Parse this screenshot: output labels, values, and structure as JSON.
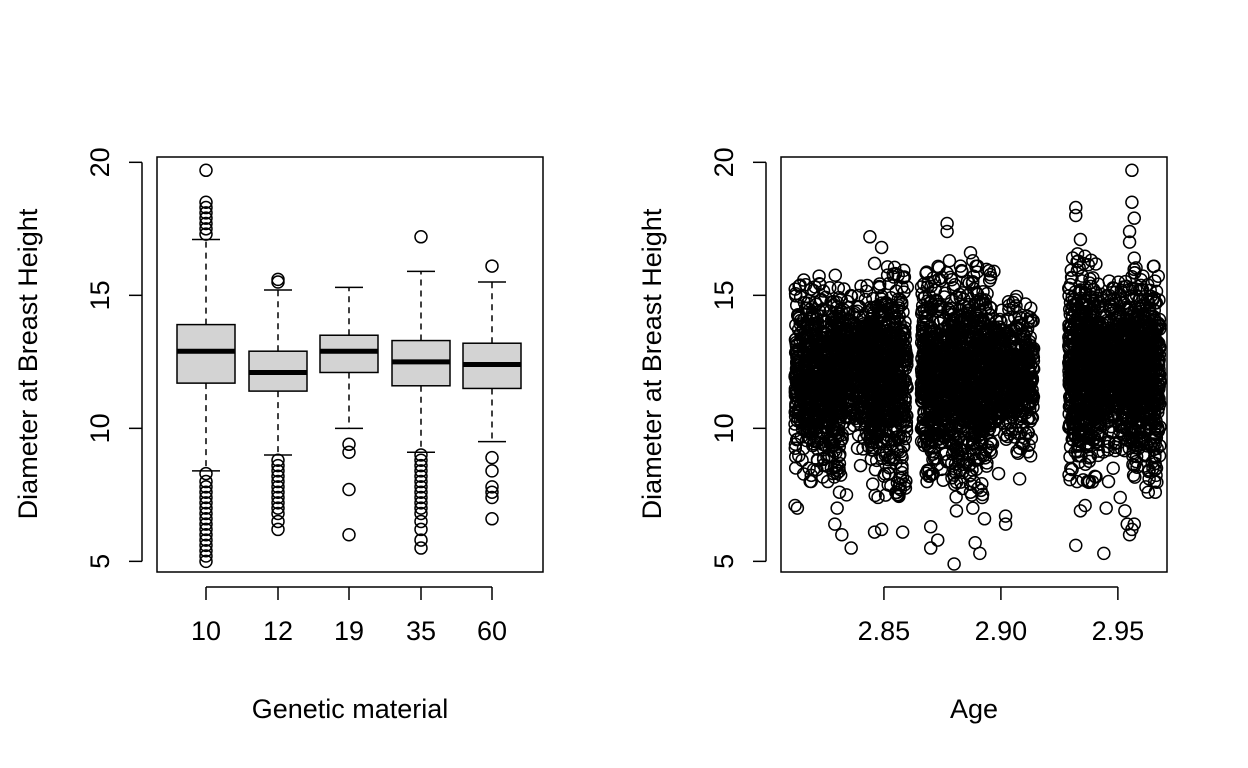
{
  "chart_data": [
    {
      "type": "box",
      "xlabel": "Genetic material",
      "ylabel": "Diameter at Breast Height",
      "categories": [
        "10",
        "12",
        "19",
        "35",
        "60"
      ],
      "ylim": [
        4.6,
        20.2
      ],
      "y_ticks": [
        "5",
        "10",
        "15",
        "20"
      ],
      "boxes": [
        {
          "category": "10",
          "whisker_low": 8.4,
          "q1": 11.7,
          "median": 12.9,
          "q3": 13.9,
          "whisker_high": 17.1,
          "outliers": [
            19.7,
            18.5,
            18.3,
            18.1,
            17.9,
            17.7,
            17.5,
            17.3,
            8.3,
            8.0,
            7.8,
            7.6,
            7.4,
            7.2,
            7.0,
            6.8,
            6.6,
            6.4,
            6.2,
            6.0,
            5.8,
            5.6,
            5.4,
            5.2,
            5.0
          ]
        },
        {
          "category": "12",
          "whisker_low": 9.0,
          "q1": 11.4,
          "median": 12.1,
          "q3": 12.9,
          "whisker_high": 15.2,
          "outliers": [
            15.6,
            15.5,
            8.8,
            8.6,
            8.4,
            8.2,
            8.0,
            7.8,
            7.6,
            7.4,
            7.2,
            7.0,
            6.8,
            6.5,
            6.2
          ]
        },
        {
          "category": "19",
          "whisker_low": 10.0,
          "q1": 12.1,
          "median": 12.9,
          "q3": 13.5,
          "whisker_high": 15.3,
          "outliers": [
            9.4,
            9.1,
            7.7,
            6.0
          ]
        },
        {
          "category": "35",
          "whisker_low": 9.1,
          "q1": 11.6,
          "median": 12.5,
          "q3": 13.3,
          "whisker_high": 15.9,
          "outliers": [
            17.2,
            9.0,
            8.8,
            8.6,
            8.4,
            8.2,
            8.0,
            7.8,
            7.6,
            7.4,
            7.2,
            7.0,
            6.8,
            6.5,
            6.2,
            5.8,
            5.5
          ]
        },
        {
          "category": "60",
          "whisker_low": 9.5,
          "q1": 11.5,
          "median": 12.4,
          "q3": 13.2,
          "whisker_high": 15.5,
          "outliers": [
            16.1,
            8.9,
            8.4,
            7.8,
            7.6,
            7.4,
            6.6
          ]
        }
      ]
    },
    {
      "type": "scatter",
      "xlabel": "Age",
      "ylabel": "Diameter at Breast Height",
      "xlim": [
        2.806,
        2.971
      ],
      "ylim": [
        4.6,
        20.2
      ],
      "x_ticks": [
        "2.85",
        "2.90",
        "2.95"
      ],
      "y_ticks": [
        "5",
        "10",
        "15",
        "20"
      ],
      "clusters": [
        {
          "x_range": [
            2.812,
            2.832
          ],
          "y_range": [
            8.5,
            15.2
          ],
          "n": 700
        },
        {
          "x_range": [
            2.83,
            2.846
          ],
          "y_range": [
            9.5,
            14.8
          ],
          "n": 450
        },
        {
          "x_range": [
            2.844,
            2.86
          ],
          "y_range": [
            8.0,
            15.5
          ],
          "n": 550
        },
        {
          "x_range": [
            2.866,
            2.88
          ],
          "y_range": [
            8.5,
            15.5
          ],
          "n": 550
        },
        {
          "x_range": [
            2.88,
            2.896
          ],
          "y_range": [
            8.0,
            15.5
          ],
          "n": 600
        },
        {
          "x_range": [
            2.896,
            2.914
          ],
          "y_range": [
            9.5,
            14.5
          ],
          "n": 500
        },
        {
          "x_range": [
            2.929,
            2.942
          ],
          "y_range": [
            8.5,
            16.0
          ],
          "n": 600
        },
        {
          "x_range": [
            2.942,
            2.955
          ],
          "y_range": [
            9.5,
            15.0
          ],
          "n": 500
        },
        {
          "x_range": [
            2.955,
            2.968
          ],
          "y_range": [
            8.5,
            15.5
          ],
          "n": 550
        }
      ],
      "extreme_points": [
        {
          "x": 2.812,
          "y": 7.1
        },
        {
          "x": 2.813,
          "y": 7.0
        },
        {
          "x": 2.815,
          "y": 8.8
        },
        {
          "x": 2.826,
          "y": 8.0
        },
        {
          "x": 2.829,
          "y": 6.4
        },
        {
          "x": 2.83,
          "y": 7.0
        },
        {
          "x": 2.831,
          "y": 7.6
        },
        {
          "x": 2.832,
          "y": 6.0
        },
        {
          "x": 2.834,
          "y": 7.5
        },
        {
          "x": 2.836,
          "y": 5.5
        },
        {
          "x": 2.84,
          "y": 8.6
        },
        {
          "x": 2.844,
          "y": 17.2
        },
        {
          "x": 2.846,
          "y": 16.2
        },
        {
          "x": 2.849,
          "y": 16.8
        },
        {
          "x": 2.846,
          "y": 6.1
        },
        {
          "x": 2.849,
          "y": 6.2
        },
        {
          "x": 2.852,
          "y": 8.3
        },
        {
          "x": 2.857,
          "y": 7.7
        },
        {
          "x": 2.858,
          "y": 6.1
        },
        {
          "x": 2.87,
          "y": 6.3
        },
        {
          "x": 2.87,
          "y": 5.5
        },
        {
          "x": 2.873,
          "y": 5.8
        },
        {
          "x": 2.877,
          "y": 17.7
        },
        {
          "x": 2.877,
          "y": 17.4
        },
        {
          "x": 2.878,
          "y": 16.3
        },
        {
          "x": 2.88,
          "y": 4.9
        },
        {
          "x": 2.881,
          "y": 6.9
        },
        {
          "x": 2.879,
          "y": 8.7
        },
        {
          "x": 2.887,
          "y": 16.6
        },
        {
          "x": 2.888,
          "y": 16.3
        },
        {
          "x": 2.89,
          "y": 16.1
        },
        {
          "x": 2.887,
          "y": 7.9
        },
        {
          "x": 2.887,
          "y": 7.6
        },
        {
          "x": 2.888,
          "y": 7.0
        },
        {
          "x": 2.889,
          "y": 5.7
        },
        {
          "x": 2.891,
          "y": 5.3
        },
        {
          "x": 2.892,
          "y": 7.4
        },
        {
          "x": 2.893,
          "y": 6.6
        },
        {
          "x": 2.897,
          "y": 15.9
        },
        {
          "x": 2.899,
          "y": 8.3
        },
        {
          "x": 2.902,
          "y": 6.7
        },
        {
          "x": 2.902,
          "y": 6.4
        },
        {
          "x": 2.908,
          "y": 8.1
        },
        {
          "x": 2.932,
          "y": 18.3
        },
        {
          "x": 2.932,
          "y": 18.0
        },
        {
          "x": 2.934,
          "y": 17.1
        },
        {
          "x": 2.932,
          "y": 5.6
        },
        {
          "x": 2.934,
          "y": 6.9
        },
        {
          "x": 2.936,
          "y": 7.1
        },
        {
          "x": 2.937,
          "y": 8.0
        },
        {
          "x": 2.944,
          "y": 5.3
        },
        {
          "x": 2.945,
          "y": 7.0
        },
        {
          "x": 2.946,
          "y": 8.0
        },
        {
          "x": 2.948,
          "y": 8.5
        },
        {
          "x": 2.951,
          "y": 7.4
        },
        {
          "x": 2.953,
          "y": 6.9
        },
        {
          "x": 2.954,
          "y": 6.4
        },
        {
          "x": 2.955,
          "y": 6.0
        },
        {
          "x": 2.956,
          "y": 6.2
        },
        {
          "x": 2.957,
          "y": 6.4
        },
        {
          "x": 2.956,
          "y": 19.7
        },
        {
          "x": 2.956,
          "y": 18.5
        },
        {
          "x": 2.957,
          "y": 17.9
        },
        {
          "x": 2.955,
          "y": 17.4
        },
        {
          "x": 2.955,
          "y": 17.0
        },
        {
          "x": 2.957,
          "y": 16.4
        },
        {
          "x": 2.963,
          "y": 7.6
        },
        {
          "x": 2.962,
          "y": 7.8
        },
        {
          "x": 2.965,
          "y": 8.5
        },
        {
          "x": 2.966,
          "y": 7.6
        },
        {
          "x": 2.966,
          "y": 9.4
        }
      ]
    }
  ]
}
